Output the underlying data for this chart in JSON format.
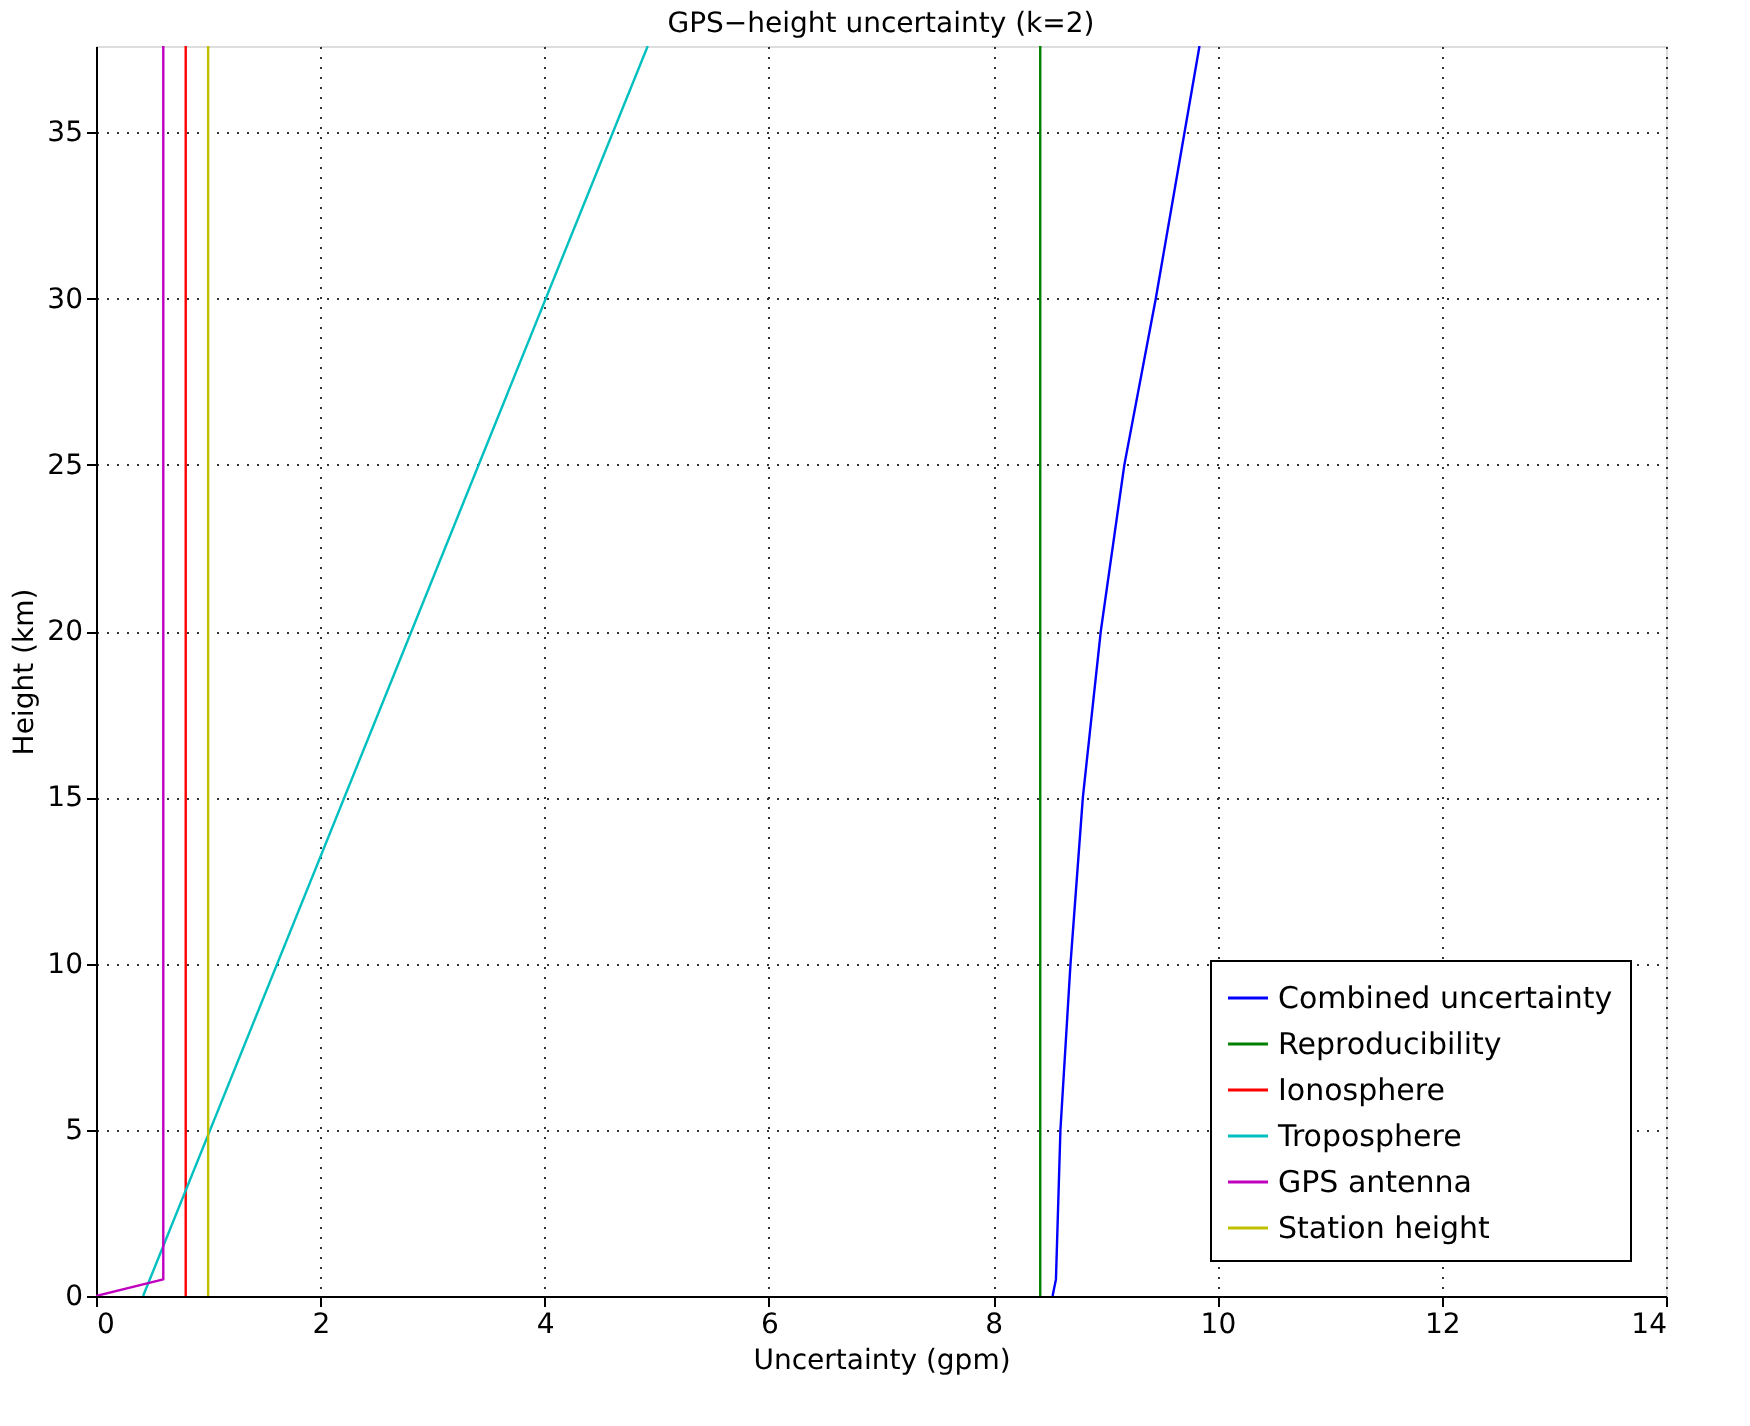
{
  "chart_data": {
    "type": "line",
    "title": "GPS−height uncertainty (k=2)",
    "xlabel": "Uncertainty (gpm)",
    "ylabel": "Height (km)",
    "xlim": [
      0,
      14
    ],
    "ylim": [
      0,
      37.6
    ],
    "xticks": [
      0,
      2,
      4,
      6,
      8,
      10,
      12,
      14
    ],
    "yticks": [
      0,
      5,
      10,
      15,
      20,
      25,
      30,
      35
    ],
    "grid": true,
    "legend": "bottom right",
    "line_style": "solid",
    "marker": "none",
    "series": [
      {
        "name": "Combined uncertainty",
        "color": "#0000ff",
        "x": [
          8.53,
          8.56,
          8.6,
          8.69,
          8.8,
          8.96,
          9.17,
          9.45,
          9.84
        ],
        "values": [
          0,
          0.5,
          5,
          10,
          15,
          20,
          25,
          30,
          37.6
        ]
      },
      {
        "name": "Reproducibility",
        "color": "#008000",
        "x": [
          8.42,
          8.42
        ],
        "values": [
          0,
          37.6
        ]
      },
      {
        "name": "Ionosphere",
        "color": "#ff0000",
        "x": [
          0.8,
          0.8
        ],
        "values": [
          0,
          37.6
        ]
      },
      {
        "name": "Troposphere",
        "color": "#00bfbf",
        "x": [
          0.42,
          4.92
        ],
        "values": [
          0,
          37.6
        ]
      },
      {
        "name": "GPS antenna",
        "color": "#bf00bf",
        "x": [
          0,
          0.6,
          0.6
        ],
        "values": [
          0,
          0.5,
          37.6
        ]
      },
      {
        "name": "Station height",
        "color": "#bfbf00",
        "x": [
          1.0,
          1.0
        ],
        "values": [
          0,
          37.6
        ]
      }
    ]
  }
}
